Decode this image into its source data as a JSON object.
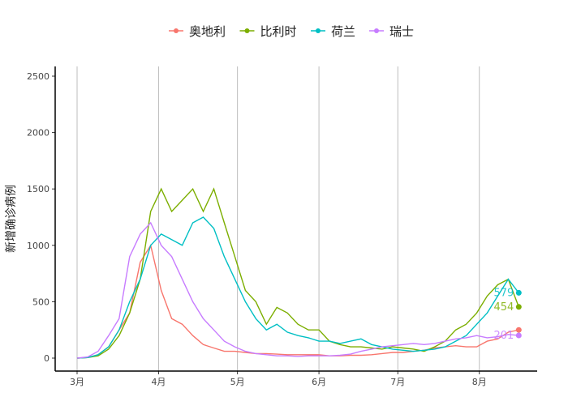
{
  "chart_data": {
    "type": "line",
    "title": "",
    "xlabel": "",
    "ylabel": "新增确诊病例",
    "ylim": [
      0,
      2500
    ],
    "yticks": [
      0,
      500,
      1000,
      1500,
      2000,
      2500
    ],
    "xtick_labels": [
      "3月",
      "4月",
      "5月",
      "6月",
      "7月",
      "8月"
    ],
    "xtick_dates": [
      "2020-03-01",
      "2020-04-01",
      "2020-05-01",
      "2020-06-01",
      "2020-07-01",
      "2020-08-01"
    ],
    "grid": "vertical major lines",
    "legend_position": "top",
    "x": [
      "2020-03-01",
      "2020-03-05",
      "2020-03-09",
      "2020-03-13",
      "2020-03-17",
      "2020-03-21",
      "2020-03-25",
      "2020-03-29",
      "2020-04-02",
      "2020-04-06",
      "2020-04-10",
      "2020-04-14",
      "2020-04-18",
      "2020-04-22",
      "2020-04-26",
      "2020-04-30",
      "2020-05-04",
      "2020-05-08",
      "2020-05-12",
      "2020-05-16",
      "2020-05-20",
      "2020-05-24",
      "2020-05-28",
      "2020-06-01",
      "2020-06-05",
      "2020-06-09",
      "2020-06-13",
      "2020-06-17",
      "2020-06-21",
      "2020-06-25",
      "2020-06-29",
      "2020-07-03",
      "2020-07-07",
      "2020-07-11",
      "2020-07-15",
      "2020-07-19",
      "2020-07-23",
      "2020-07-27",
      "2020-07-31",
      "2020-08-04",
      "2020-08-08",
      "2020-08-12",
      "2020-08-16"
    ],
    "series": [
      {
        "name": "奥地利",
        "color": "#F8766D",
        "end_label": "",
        "values": [
          0,
          5,
          30,
          100,
          250,
          400,
          850,
          1000,
          600,
          350,
          300,
          200,
          120,
          90,
          60,
          60,
          50,
          40,
          40,
          35,
          30,
          30,
          30,
          30,
          20,
          20,
          25,
          25,
          30,
          40,
          50,
          50,
          60,
          70,
          90,
          100,
          110,
          100,
          100,
          150,
          170,
          230,
          250
        ]
      },
      {
        "name": "比利时",
        "color": "#7CAE00",
        "end_label": "454",
        "values": [
          0,
          5,
          20,
          80,
          200,
          400,
          700,
          1300,
          1500,
          1300,
          1400,
          1500,
          1300,
          1500,
          1200,
          900,
          600,
          500,
          300,
          450,
          400,
          300,
          250,
          250,
          150,
          120,
          100,
          100,
          90,
          80,
          100,
          90,
          80,
          60,
          100,
          150,
          250,
          300,
          400,
          550,
          650,
          700,
          454
        ]
      },
      {
        "name": "荷兰",
        "color": "#00BFC4",
        "end_label": "579",
        "values": [
          0,
          5,
          30,
          100,
          250,
          500,
          700,
          1000,
          1100,
          1050,
          1000,
          1200,
          1250,
          1150,
          900,
          700,
          500,
          350,
          250,
          300,
          230,
          200,
          180,
          150,
          150,
          130,
          150,
          170,
          120,
          100,
          80,
          70,
          60,
          70,
          80,
          100,
          150,
          200,
          300,
          400,
          550,
          700,
          579
        ]
      },
      {
        "name": "瑞士",
        "color": "#C77CFF",
        "end_label": "201",
        "values": [
          0,
          10,
          60,
          200,
          350,
          900,
          1100,
          1200,
          1000,
          900,
          700,
          500,
          350,
          250,
          150,
          100,
          60,
          40,
          30,
          20,
          20,
          15,
          20,
          20,
          20,
          25,
          35,
          60,
          80,
          100,
          110,
          120,
          130,
          120,
          130,
          150,
          170,
          180,
          200,
          180,
          190,
          210,
          201
        ]
      }
    ]
  }
}
